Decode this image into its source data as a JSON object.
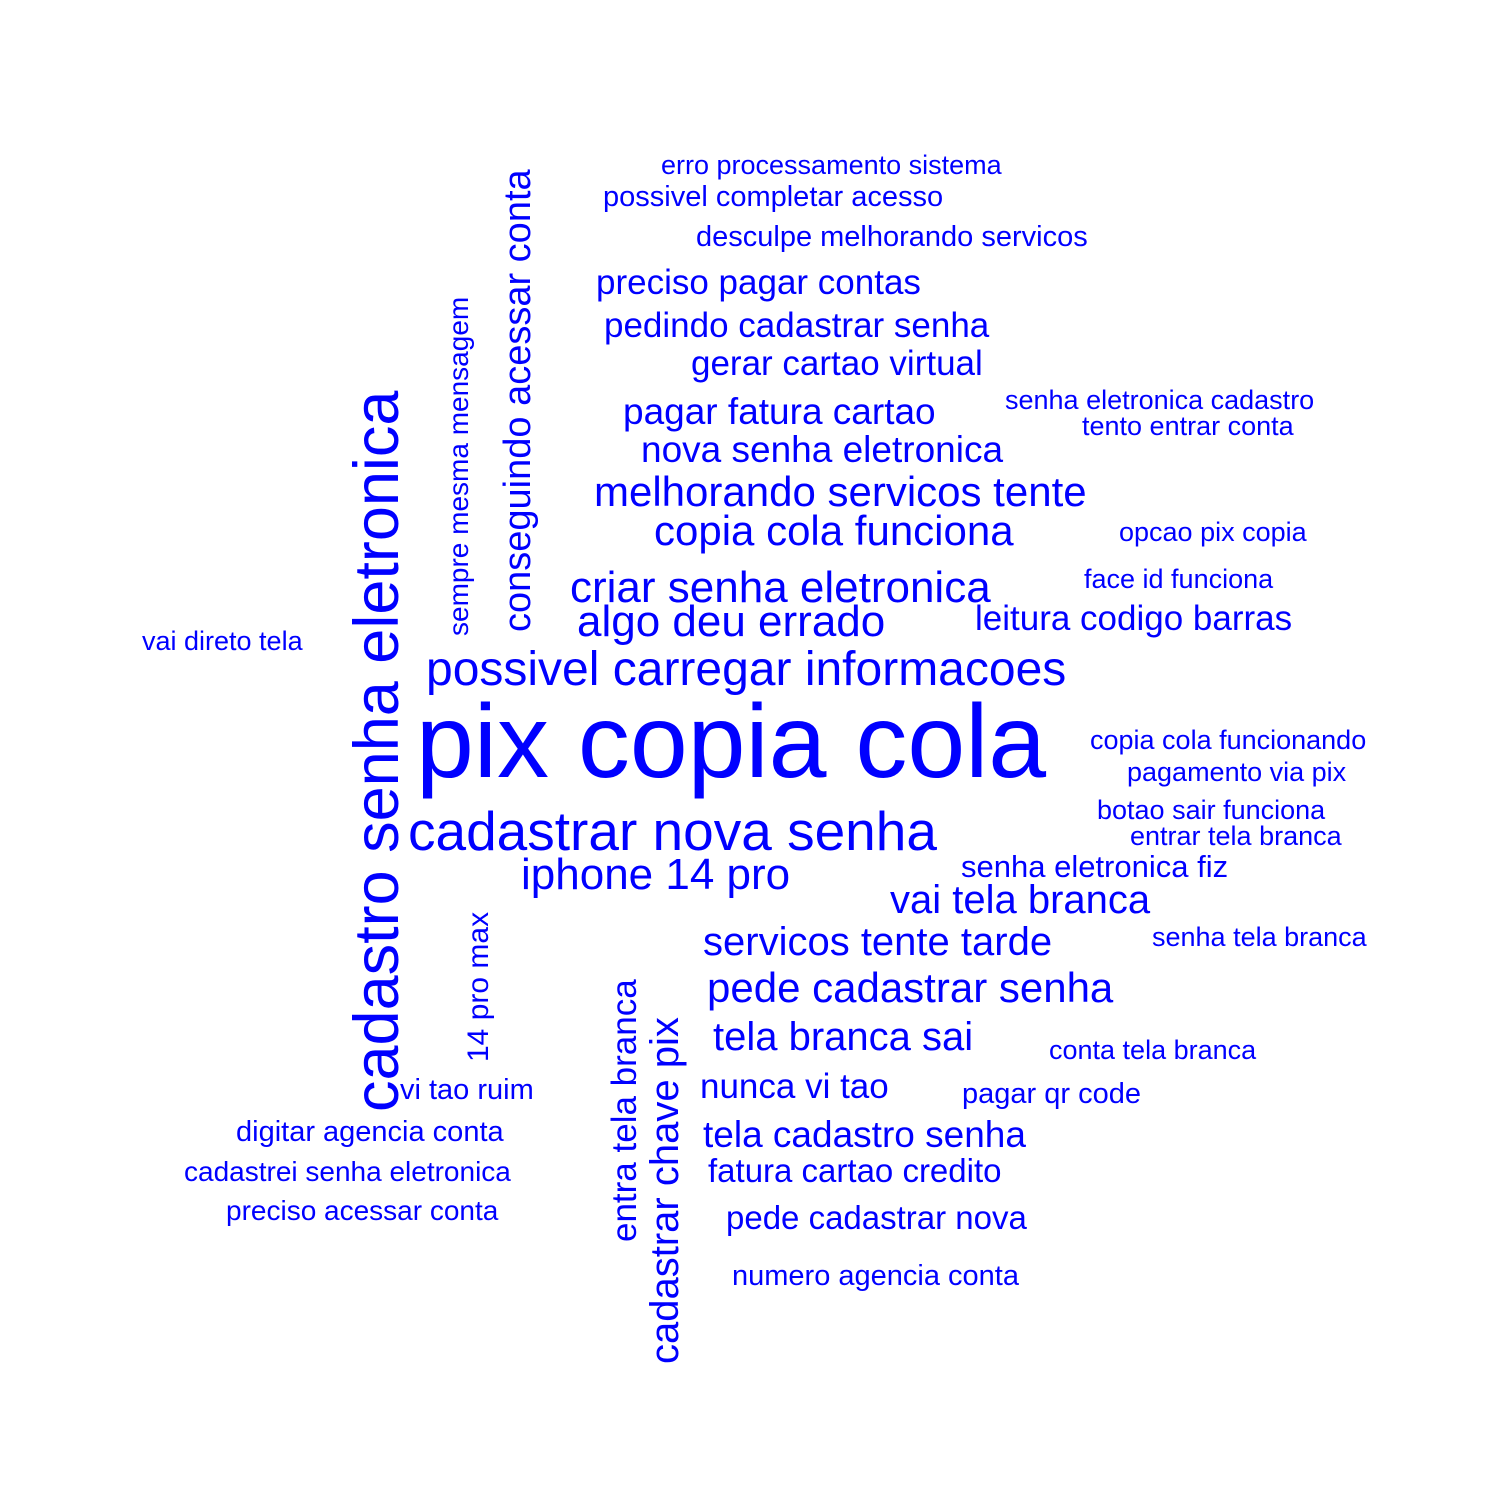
{
  "color": "#0000FF",
  "words": [
    "pix copia cola",
    "cadastro senha eletronica",
    "cadastrar nova senha",
    "possivel carregar informacoes",
    "criar senha eletronica",
    "algo deu errado",
    "iphone 14 pro",
    "melhorando servicos tente",
    "copia cola funciona",
    "conseguindo acessar conta",
    "cadastrar chave pix",
    "pede cadastrar senha",
    "servicos tente tarde",
    "tela branca sai",
    "vai tela branca",
    "entra tela branca",
    "nova senha eletronica",
    "pagar fatura cartao",
    "pedindo cadastrar senha",
    "tela cadastro senha",
    "nunca vi tao",
    "preciso pagar contas",
    "gerar cartao virtual",
    "leitura codigo barras",
    "fatura cartao credito",
    "pede cadastrar nova",
    "14 pro max",
    "senha eletronica fiz",
    "sempre mesma mensagem",
    "vi tao ruim",
    "digitar agencia conta",
    "numero agencia conta",
    "pagar qr code",
    "desculpe melhorando servicos",
    "possivel completar acesso",
    "preciso acessar conta",
    "cadastrei senha eletronica",
    "erro processamento sistema",
    "copia cola funcionando",
    "senha eletronica cadastro",
    "face id funciona",
    "botao sair funciona",
    "pagamento via pix",
    "conta tela branca",
    "senha tela branca",
    "vai direto tela",
    "opcao pix copia",
    "entrar tela branca",
    "tento entrar conta"
  ]
}
